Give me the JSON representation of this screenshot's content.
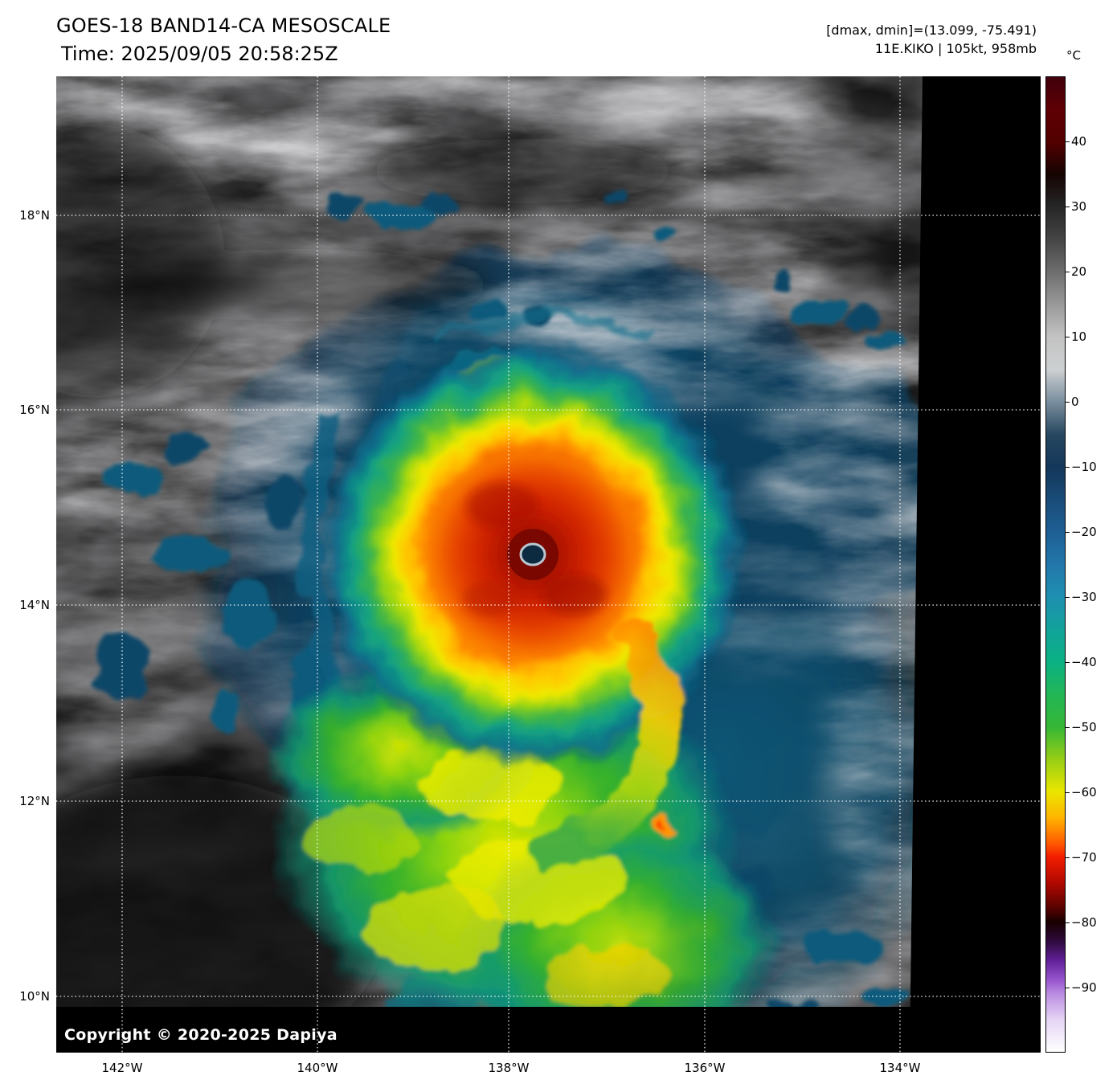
{
  "header": {
    "title": "GOES-18 BAND14-CA MESOSCALE",
    "time": "Time: 2025/09/05 20:58:25Z",
    "range_info": "[dmax, dmin]=(13.099, -75.491)",
    "storm_info": "11E.KIKO | 105kt, 958mb"
  },
  "axes": {
    "lat_labels": [
      "18°N",
      "16°N",
      "14°N",
      "12°N",
      "10°N"
    ],
    "lon_labels": [
      "142°W",
      "140°W",
      "138°W",
      "136°W",
      "134°W"
    ]
  },
  "colorbar": {
    "unit": "°C",
    "ticks": [
      {
        "label": "40",
        "value": 40
      },
      {
        "label": "30",
        "value": 30
      },
      {
        "label": "20",
        "value": 20
      },
      {
        "label": "10",
        "value": 10
      },
      {
        "label": "0",
        "value": 0
      },
      {
        "label": "−10",
        "value": -10
      },
      {
        "label": "−20",
        "value": -20
      },
      {
        "label": "−30",
        "value": -30
      },
      {
        "label": "−40",
        "value": -40
      },
      {
        "label": "−50",
        "value": -50
      },
      {
        "label": "−60",
        "value": -60
      },
      {
        "label": "−70",
        "value": -70
      },
      {
        "label": "−80",
        "value": -80
      },
      {
        "label": "−90",
        "value": -90
      }
    ],
    "stops": [
      {
        "pct": 0,
        "color": "#40000c"
      },
      {
        "pct": 3.3,
        "color": "#5e0005"
      },
      {
        "pct": 6.7,
        "color": "#520000"
      },
      {
        "pct": 10,
        "color": "#140402"
      },
      {
        "pct": 13.3,
        "color": "#262626"
      },
      {
        "pct": 16.7,
        "color": "#464646"
      },
      {
        "pct": 20,
        "color": "#6e6e6e"
      },
      {
        "pct": 23.3,
        "color": "#999999"
      },
      {
        "pct": 26.7,
        "color": "#c3c3c3"
      },
      {
        "pct": 30,
        "color": "#cdd0d2"
      },
      {
        "pct": 33.3,
        "color": "#7a8e9e"
      },
      {
        "pct": 36.7,
        "color": "#27475f"
      },
      {
        "pct": 40,
        "color": "#14375a"
      },
      {
        "pct": 43.3,
        "color": "#194b78"
      },
      {
        "pct": 46.7,
        "color": "#1e5f94"
      },
      {
        "pct": 50,
        "color": "#2377ab"
      },
      {
        "pct": 53.3,
        "color": "#1e8fb0"
      },
      {
        "pct": 56.7,
        "color": "#12a39b"
      },
      {
        "pct": 60,
        "color": "#0bb183"
      },
      {
        "pct": 63.3,
        "color": "#22b656"
      },
      {
        "pct": 66.7,
        "color": "#35b735"
      },
      {
        "pct": 70,
        "color": "#97ce14"
      },
      {
        "pct": 73.3,
        "color": "#eae600"
      },
      {
        "pct": 76,
        "color": "#ffb400"
      },
      {
        "pct": 78.7,
        "color": "#ff5500"
      },
      {
        "pct": 80,
        "color": "#f21e00"
      },
      {
        "pct": 82.7,
        "color": "#b00800"
      },
      {
        "pct": 85.3,
        "color": "#550200"
      },
      {
        "pct": 86.7,
        "color": "#170000"
      },
      {
        "pct": 88.7,
        "color": "#2f0a3e"
      },
      {
        "pct": 90.7,
        "color": "#63219a"
      },
      {
        "pct": 92.7,
        "color": "#9a58cf"
      },
      {
        "pct": 94,
        "color": "#ba8be0"
      },
      {
        "pct": 96.7,
        "color": "#e5d5f5"
      },
      {
        "pct": 100,
        "color": "#ffffff"
      }
    ]
  },
  "footer": {
    "copyright": "Copyright © 2020-2025 Dapiya"
  },
  "chart_data": {
    "type": "heatmap",
    "title": "GOES-18 BAND14-CA MESOSCALE",
    "time": "2025/09/05 20:58:25Z",
    "x_ticks": [
      "142°W",
      "140°W",
      "138°W",
      "136°W",
      "134°W"
    ],
    "y_ticks": [
      "18°N",
      "16°N",
      "14°N",
      "12°N",
      "10°N"
    ],
    "colorbar_unit": "°C",
    "colorbar_ticks": [
      40,
      30,
      20,
      10,
      0,
      -10,
      -20,
      -30,
      -40,
      -50,
      -60,
      -70,
      -80,
      -90
    ],
    "colorbar_range": [
      50,
      -100
    ],
    "dmax": 13.099,
    "dmin": -75.491,
    "storm_id": "11E.KIKO",
    "intensity_kt": 105,
    "pressure_mb": 958,
    "eye_location": {
      "lon": "138°W",
      "lat": "14.5°N"
    }
  }
}
